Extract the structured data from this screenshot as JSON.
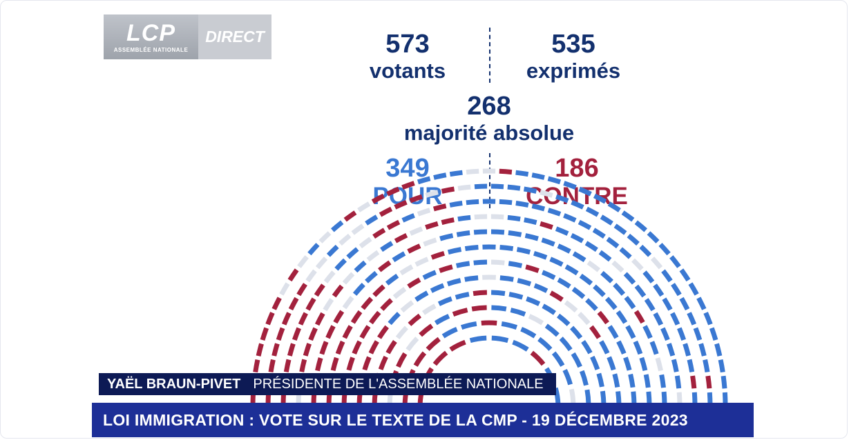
{
  "logo": {
    "brand": "LCP",
    "subtitle": "ASSEMBLÉE NATIONALE",
    "live": "DIRECT"
  },
  "results": {
    "votants": {
      "value": "573",
      "label": "votants"
    },
    "exprimes": {
      "value": "535",
      "label": "exprimés"
    },
    "majorite": {
      "value": "268",
      "label": "majorité absolue"
    },
    "pour": {
      "value": "349",
      "label": "POUR"
    },
    "contre": {
      "value": "186",
      "label": "CONTRE"
    }
  },
  "colors": {
    "navy": "#13306e",
    "pour": "#3a78d2",
    "contre": "#a3213d",
    "abstention": "#dde1ea"
  },
  "lower_third": {
    "name": "YAËL BRAUN-PIVET",
    "role": "PRÉSIDENTE DE L'ASSEMBLÉE NATIONALE",
    "headline": "LOI IMMIGRATION : VOTE SUR LE TEXTE DE LA CMP - 19 DÉCEMBRE 2023"
  }
}
